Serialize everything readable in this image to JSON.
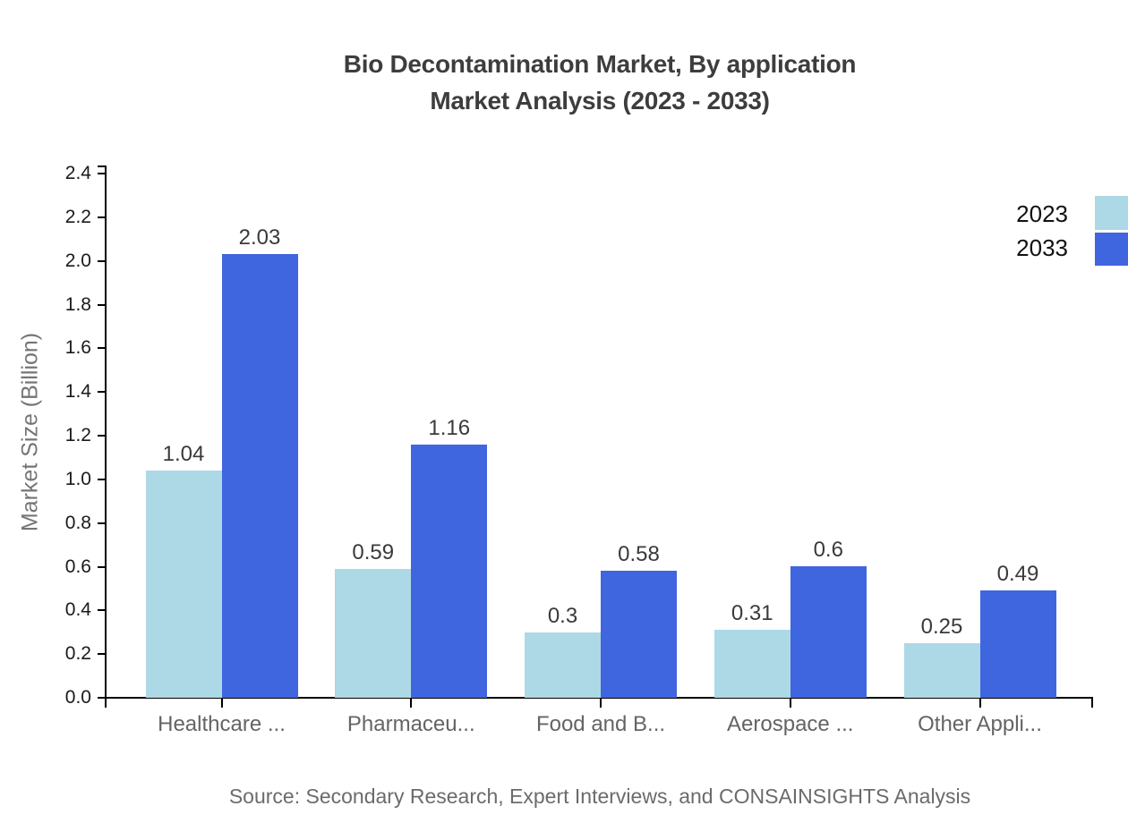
{
  "title": {
    "line1": "Bio Decontamination Market, By application",
    "line2": "Market Analysis (2023 - 2033)"
  },
  "y_axis": {
    "label": "Market Size (Billion)"
  },
  "legend": {
    "position": "top-right",
    "items": [
      {
        "label": "2023",
        "color": "#ADD8E6"
      },
      {
        "label": "2033",
        "color": "#3F65DF"
      }
    ]
  },
  "source": "Source: Secondary Research, Expert Interviews, and CONSAINSIGHTS Analysis",
  "chart_data": {
    "type": "bar",
    "title": "Bio Decontamination Market, By application Market Analysis (2023 - 2033)",
    "categories": [
      "Healthcare ...",
      "Pharmaceu...",
      "Food and B...",
      "Aerospace ...",
      "Other Appli..."
    ],
    "series": [
      {
        "name": "2023",
        "color": "#ADD8E6",
        "values": [
          1.04,
          0.59,
          0.3,
          0.31,
          0.25
        ]
      },
      {
        "name": "2033",
        "color": "#3F65DF",
        "values": [
          2.03,
          1.16,
          0.58,
          0.6,
          0.49
        ]
      }
    ],
    "xlabel": "",
    "ylabel": "Market Size (Billion)",
    "ylim": [
      0,
      2.4
    ],
    "ytick_step": 0.2,
    "ytick_format_decimals": 1,
    "grid": false,
    "value_labels": true,
    "legend_position": "top-right"
  }
}
